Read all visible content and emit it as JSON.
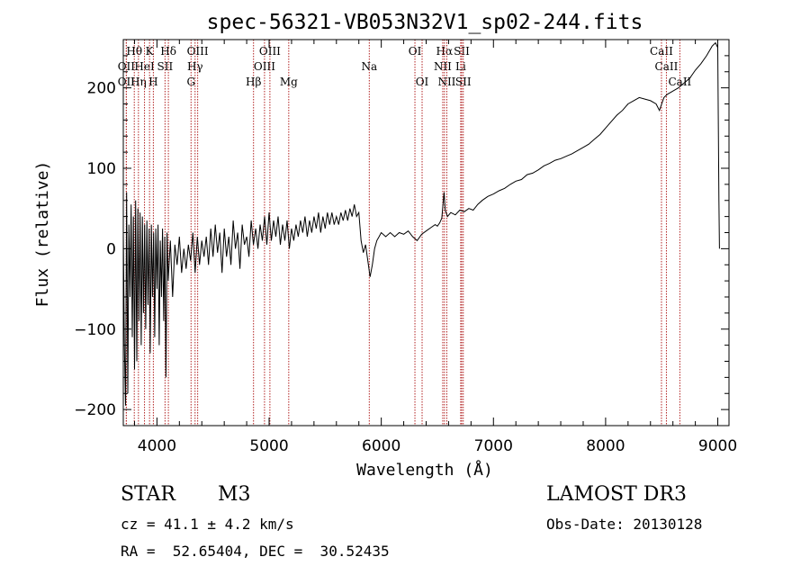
{
  "chart_data": {
    "type": "line",
    "title": "spec-56321-VB053N32V1_sp02-244.fits",
    "xlabel": "Wavelength (Å)",
    "ylabel": "Flux (relative)",
    "xlim": [
      3700,
      9100
    ],
    "ylim": [
      -220,
      260
    ],
    "xticks": [
      4000,
      5000,
      6000,
      7000,
      8000,
      9000
    ],
    "xtick_labels": [
      "4000",
      "5000",
      "6000",
      "7000",
      "8000",
      "9000"
    ],
    "yticks": [
      -200,
      -100,
      0,
      100,
      200
    ],
    "ytick_labels": [
      "−200",
      "−100",
      "0",
      "100",
      "200"
    ],
    "grid": false,
    "spectrum": [
      [
        3700,
        20
      ],
      [
        3710,
        -120
      ],
      [
        3720,
        -195
      ],
      [
        3730,
        70
      ],
      [
        3740,
        -180
      ],
      [
        3750,
        30
      ],
      [
        3760,
        -60
      ],
      [
        3770,
        55
      ],
      [
        3780,
        -110
      ],
      [
        3790,
        40
      ],
      [
        3800,
        -150
      ],
      [
        3810,
        60
      ],
      [
        3820,
        -140
      ],
      [
        3830,
        50
      ],
      [
        3840,
        -90
      ],
      [
        3850,
        45
      ],
      [
        3860,
        -120
      ],
      [
        3870,
        40
      ],
      [
        3880,
        -80
      ],
      [
        3890,
        30
      ],
      [
        3900,
        -100
      ],
      [
        3910,
        35
      ],
      [
        3920,
        -70
      ],
      [
        3930,
        25
      ],
      [
        3940,
        -130
      ],
      [
        3950,
        30
      ],
      [
        3960,
        -60
      ],
      [
        3970,
        20
      ],
      [
        3980,
        -110
      ],
      [
        3990,
        25
      ],
      [
        4000,
        -50
      ],
      [
        4010,
        30
      ],
      [
        4020,
        -120
      ],
      [
        4030,
        10
      ],
      [
        4040,
        -60
      ],
      [
        4050,
        25
      ],
      [
        4060,
        -90
      ],
      [
        4070,
        15
      ],
      [
        4080,
        -160
      ],
      [
        4090,
        20
      ],
      [
        4100,
        -40
      ],
      [
        4120,
        10
      ],
      [
        4140,
        -60
      ],
      [
        4160,
        5
      ],
      [
        4180,
        -20
      ],
      [
        4200,
        15
      ],
      [
        4220,
        -30
      ],
      [
        4240,
        0
      ],
      [
        4260,
        -25
      ],
      [
        4280,
        5
      ],
      [
        4300,
        -15
      ],
      [
        4320,
        20
      ],
      [
        4340,
        -30
      ],
      [
        4360,
        15
      ],
      [
        4380,
        -20
      ],
      [
        4400,
        10
      ],
      [
        4420,
        -10
      ],
      [
        4440,
        15
      ],
      [
        4460,
        -20
      ],
      [
        4480,
        25
      ],
      [
        4500,
        -10
      ],
      [
        4520,
        30
      ],
      [
        4540,
        -5
      ],
      [
        4560,
        20
      ],
      [
        4580,
        -30
      ],
      [
        4600,
        25
      ],
      [
        4620,
        -10
      ],
      [
        4640,
        15
      ],
      [
        4660,
        -20
      ],
      [
        4680,
        35
      ],
      [
        4700,
        0
      ],
      [
        4720,
        20
      ],
      [
        4740,
        -25
      ],
      [
        4760,
        30
      ],
      [
        4780,
        5
      ],
      [
        4800,
        15
      ],
      [
        4820,
        -10
      ],
      [
        4840,
        35
      ],
      [
        4860,
        5
      ],
      [
        4880,
        25
      ],
      [
        4900,
        0
      ],
      [
        4920,
        30
      ],
      [
        4940,
        10
      ],
      [
        4960,
        40
      ],
      [
        4980,
        5
      ],
      [
        5000,
        45
      ],
      [
        5020,
        10
      ],
      [
        5040,
        35
      ],
      [
        5060,
        15
      ],
      [
        5080,
        40
      ],
      [
        5100,
        5
      ],
      [
        5120,
        30
      ],
      [
        5140,
        10
      ],
      [
        5160,
        35
      ],
      [
        5180,
        0
      ],
      [
        5200,
        25
      ],
      [
        5220,
        10
      ],
      [
        5240,
        30
      ],
      [
        5260,
        15
      ],
      [
        5280,
        35
      ],
      [
        5300,
        20
      ],
      [
        5320,
        40
      ],
      [
        5340,
        15
      ],
      [
        5360,
        35
      ],
      [
        5380,
        20
      ],
      [
        5400,
        40
      ],
      [
        5420,
        25
      ],
      [
        5440,
        45
      ],
      [
        5460,
        20
      ],
      [
        5480,
        40
      ],
      [
        5500,
        25
      ],
      [
        5520,
        45
      ],
      [
        5540,
        30
      ],
      [
        5560,
        45
      ],
      [
        5580,
        30
      ],
      [
        5600,
        40
      ],
      [
        5620,
        30
      ],
      [
        5640,
        45
      ],
      [
        5660,
        35
      ],
      [
        5680,
        48
      ],
      [
        5700,
        35
      ],
      [
        5720,
        50
      ],
      [
        5740,
        40
      ],
      [
        5760,
        55
      ],
      [
        5780,
        40
      ],
      [
        5800,
        45
      ],
      [
        5820,
        10
      ],
      [
        5840,
        -5
      ],
      [
        5860,
        5
      ],
      [
        5880,
        -15
      ],
      [
        5900,
        -35
      ],
      [
        5920,
        -20
      ],
      [
        5940,
        0
      ],
      [
        5960,
        10
      ],
      [
        5980,
        15
      ],
      [
        6000,
        20
      ],
      [
        6040,
        15
      ],
      [
        6080,
        20
      ],
      [
        6120,
        15
      ],
      [
        6160,
        20
      ],
      [
        6200,
        18
      ],
      [
        6240,
        22
      ],
      [
        6280,
        15
      ],
      [
        6320,
        10
      ],
      [
        6360,
        18
      ],
      [
        6400,
        22
      ],
      [
        6440,
        26
      ],
      [
        6480,
        30
      ],
      [
        6500,
        28
      ],
      [
        6520,
        32
      ],
      [
        6540,
        38
      ],
      [
        6560,
        70
      ],
      [
        6570,
        48
      ],
      [
        6590,
        40
      ],
      [
        6620,
        45
      ],
      [
        6660,
        42
      ],
      [
        6700,
        48
      ],
      [
        6740,
        46
      ],
      [
        6780,
        50
      ],
      [
        6820,
        48
      ],
      [
        6860,
        55
      ],
      [
        6900,
        60
      ],
      [
        6950,
        65
      ],
      [
        7000,
        68
      ],
      [
        7050,
        72
      ],
      [
        7100,
        75
      ],
      [
        7150,
        80
      ],
      [
        7200,
        84
      ],
      [
        7250,
        86
      ],
      [
        7300,
        92
      ],
      [
        7350,
        94
      ],
      [
        7400,
        98
      ],
      [
        7450,
        103
      ],
      [
        7500,
        106
      ],
      [
        7550,
        110
      ],
      [
        7600,
        112
      ],
      [
        7650,
        115
      ],
      [
        7700,
        118
      ],
      [
        7750,
        122
      ],
      [
        7800,
        126
      ],
      [
        7850,
        130
      ],
      [
        7900,
        136
      ],
      [
        7950,
        142
      ],
      [
        8000,
        150
      ],
      [
        8050,
        158
      ],
      [
        8100,
        166
      ],
      [
        8150,
        172
      ],
      [
        8200,
        180
      ],
      [
        8250,
        184
      ],
      [
        8300,
        188
      ],
      [
        8350,
        186
      ],
      [
        8400,
        184
      ],
      [
        8450,
        180
      ],
      [
        8480,
        172
      ],
      [
        8500,
        180
      ],
      [
        8520,
        188
      ],
      [
        8550,
        192
      ],
      [
        8600,
        196
      ],
      [
        8650,
        200
      ],
      [
        8700,
        206
      ],
      [
        8750,
        212
      ],
      [
        8800,
        222
      ],
      [
        8850,
        230
      ],
      [
        8900,
        240
      ],
      [
        8950,
        252
      ],
      [
        8980,
        256
      ],
      [
        9000,
        250
      ],
      [
        9010,
        60
      ],
      [
        9015,
        0
      ]
    ],
    "lines": [
      {
        "name": "Hθ",
        "x": 3798,
        "row": 1
      },
      {
        "name": "OII",
        "x": 3727,
        "row": 2
      },
      {
        "name": "OII",
        "x": 3727,
        "row": 3
      },
      {
        "name": "Hη",
        "x": 3835,
        "row": 3
      },
      {
        "name": "HeI",
        "x": 3889,
        "row": 2
      },
      {
        "name": "K",
        "x": 3934,
        "row": 1
      },
      {
        "name": "H",
        "x": 3968,
        "row": 3
      },
      {
        "name": "SII",
        "x": 4072,
        "row": 2
      },
      {
        "name": "Hδ",
        "x": 4102,
        "row": 1
      },
      {
        "name": "OIII",
        "x": 4363,
        "row": 1
      },
      {
        "name": "Hγ",
        "x": 4340,
        "row": 2
      },
      {
        "name": "G",
        "x": 4304,
        "row": 3
      },
      {
        "name": "Hβ",
        "x": 4861,
        "row": 3
      },
      {
        "name": "OIII",
        "x": 4959,
        "row": 2
      },
      {
        "name": "OIII",
        "x": 5007,
        "row": 1
      },
      {
        "name": "Mg",
        "x": 5175,
        "row": 3
      },
      {
        "name": "Na",
        "x": 5893,
        "row": 2
      },
      {
        "name": "OI",
        "x": 6300,
        "row": 1
      },
      {
        "name": "OI",
        "x": 6364,
        "row": 3
      },
      {
        "name": "Hα",
        "x": 6563,
        "row": 1
      },
      {
        "name": "NII",
        "x": 6548,
        "row": 2
      },
      {
        "name": "NII",
        "x": 6584,
        "row": 3
      },
      {
        "name": "SII",
        "x": 6717,
        "row": 1
      },
      {
        "name": "Li",
        "x": 6708,
        "row": 2
      },
      {
        "name": "SII",
        "x": 6731,
        "row": 3
      },
      {
        "name": "CaII",
        "x": 8498,
        "row": 1
      },
      {
        "name": "CaII",
        "x": 8542,
        "row": 2
      },
      {
        "name": "CaII",
        "x": 8662,
        "row": 3
      }
    ],
    "line_color": "#b22222"
  },
  "info": {
    "class": "STAR",
    "subclass": "M3",
    "survey": "LAMOST DR3",
    "cz": "cz = 41.1 ± 4.2 km/s",
    "obs_date": "Obs-Date: 20130128",
    "coords": "RA =  52.65404, DEC =  30.52435"
  }
}
